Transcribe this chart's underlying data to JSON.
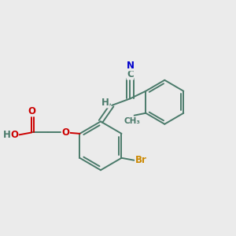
{
  "bg_color": "#ebebeb",
  "bond_color": "#4a7a6a",
  "bond_lw": 1.4,
  "atom_colors": {
    "O": "#cc0000",
    "N": "#0000cc",
    "Br": "#cc8800",
    "C_label": "#4a7a6a",
    "H": "#4a7a6a"
  },
  "font_size": 8.5
}
